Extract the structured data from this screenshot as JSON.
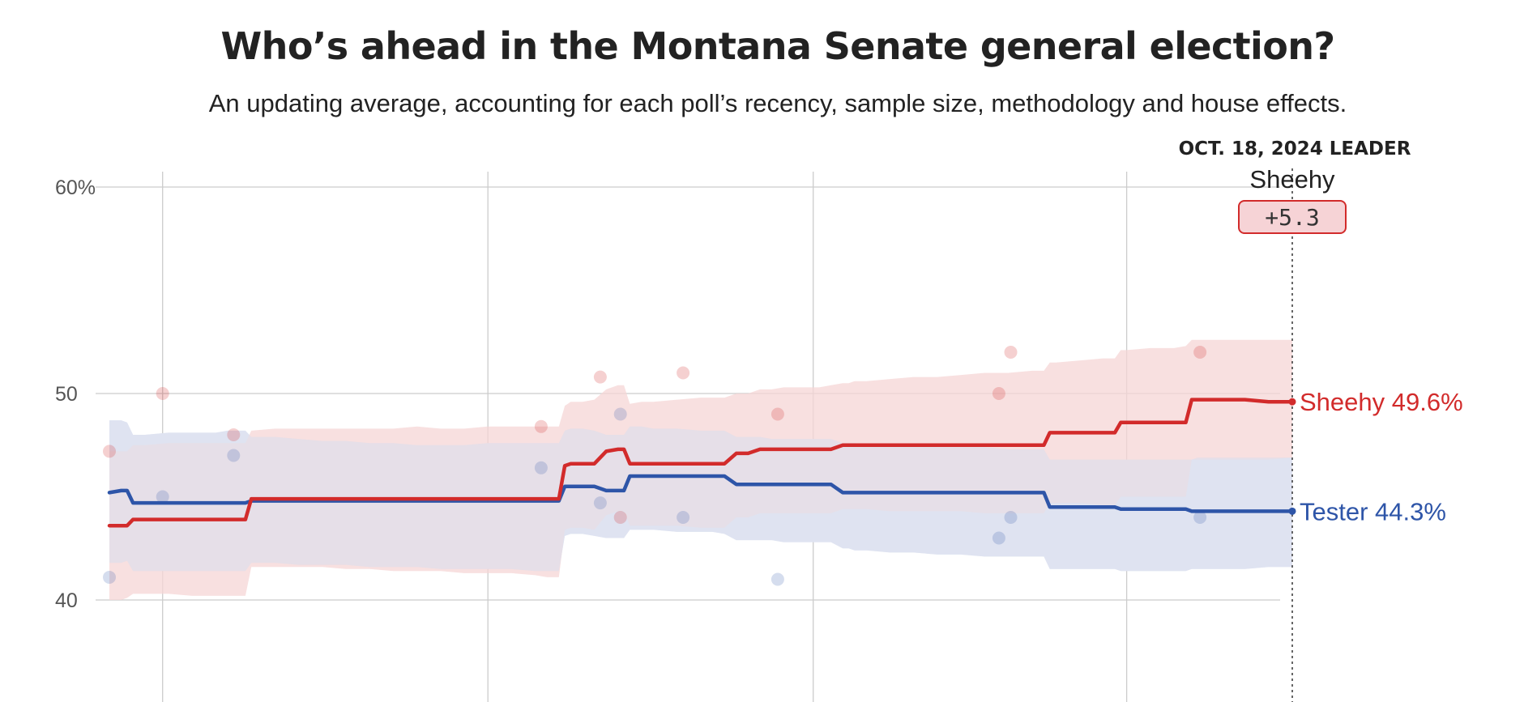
{
  "title": "Who’s ahead in the Montana Senate general election?",
  "subtitle": "An updating average, accounting for each poll’s recency, sample size, methodology and house effects.",
  "leader": {
    "date_label": "OCT. 18, 2024 LEADER",
    "name": "Sheehy",
    "margin": "+5.3"
  },
  "colors": {
    "sheehy": "#d22b2b",
    "tester": "#2e55a8",
    "sheehy_band": "#f6d5d5",
    "tester_band": "#dfe3f1",
    "overlap_band": "#e0cbd6",
    "grid": "#cccccc",
    "margin_box_fill": "#f6d3d6",
    "margin_box_stroke": "#d22b2b"
  },
  "chart_data": {
    "type": "line",
    "title": "Who’s ahead in the Montana Senate general election?",
    "y_ticks": [
      {
        "value": 60,
        "label": "60%"
      },
      {
        "value": 50,
        "label": "50"
      },
      {
        "value": 40,
        "label": "40"
      }
    ],
    "ylim": [
      35,
      63
    ],
    "xlim": [
      0,
      100
    ],
    "x_gridlines": [
      4.5,
      32,
      59.5,
      86
    ],
    "grid": true,
    "series": [
      {
        "name": "Sheehy",
        "color_key": "sheehy",
        "end_label": "Sheehy 49.6%",
        "x": [
          0,
          1,
          1.5,
          2,
          3,
          5,
          7,
          9,
          10,
          11,
          11.5,
          12,
          14,
          16,
          18,
          20,
          22,
          24,
          26,
          28,
          30,
          32,
          34,
          36,
          37,
          38,
          38.5,
          39,
          40,
          41,
          42,
          43,
          43.5,
          44,
          45,
          46,
          48,
          50,
          51,
          52,
          53,
          54,
          55,
          56,
          57,
          58,
          60,
          61,
          62,
          62.5,
          63,
          64,
          66,
          68,
          70,
          72,
          74,
          76,
          78,
          79,
          79.5,
          80,
          82,
          84,
          85,
          85.5,
          86,
          88,
          90,
          91,
          91.5,
          92,
          94,
          96,
          98,
          100
        ],
        "values": [
          43.6,
          43.6,
          43.6,
          43.9,
          43.9,
          43.9,
          43.9,
          43.9,
          43.9,
          43.9,
          43.9,
          44.9,
          44.9,
          44.9,
          44.9,
          44.9,
          44.9,
          44.9,
          44.9,
          44.9,
          44.9,
          44.9,
          44.9,
          44.9,
          44.9,
          44.9,
          46.5,
          46.6,
          46.6,
          46.6,
          47.2,
          47.3,
          47.3,
          46.6,
          46.6,
          46.6,
          46.6,
          46.6,
          46.6,
          46.6,
          47.1,
          47.1,
          47.3,
          47.3,
          47.3,
          47.3,
          47.3,
          47.3,
          47.5,
          47.5,
          47.5,
          47.5,
          47.5,
          47.5,
          47.5,
          47.5,
          47.5,
          47.5,
          47.5,
          47.5,
          48.1,
          48.1,
          48.1,
          48.1,
          48.1,
          48.6,
          48.6,
          48.6,
          48.6,
          48.6,
          49.7,
          49.7,
          49.7,
          49.7,
          49.6,
          49.6
        ],
        "upper": [
          47.2,
          47.2,
          47.2,
          47.5,
          47.5,
          47.6,
          47.6,
          47.6,
          47.6,
          47.6,
          47.6,
          48.2,
          48.3,
          48.3,
          48.3,
          48.3,
          48.3,
          48.3,
          48.4,
          48.3,
          48.3,
          48.4,
          48.4,
          48.4,
          48.4,
          48.4,
          49.4,
          49.6,
          49.6,
          49.7,
          50.2,
          50.4,
          50.4,
          49.5,
          49.6,
          49.6,
          49.7,
          49.8,
          49.8,
          49.8,
          50.0,
          50.0,
          50.2,
          50.2,
          50.3,
          50.3,
          50.3,
          50.4,
          50.5,
          50.5,
          50.6,
          50.6,
          50.7,
          50.8,
          50.8,
          50.9,
          51.0,
          51.0,
          51.1,
          51.1,
          51.5,
          51.5,
          51.6,
          51.7,
          51.7,
          52.1,
          52.1,
          52.2,
          52.2,
          52.3,
          52.6,
          52.6,
          52.6,
          52.6,
          52.6,
          52.6
        ],
        "lower": [
          40.0,
          40.0,
          40.1,
          40.3,
          40.3,
          40.3,
          40.2,
          40.2,
          40.2,
          40.2,
          40.2,
          41.6,
          41.6,
          41.6,
          41.6,
          41.5,
          41.5,
          41.4,
          41.4,
          41.4,
          41.3,
          41.3,
          41.3,
          41.2,
          41.1,
          41.1,
          43.4,
          43.5,
          43.5,
          43.4,
          44.1,
          44.3,
          44.3,
          43.6,
          43.6,
          43.6,
          43.6,
          43.5,
          43.5,
          43.5,
          44.0,
          44.0,
          44.2,
          44.2,
          44.2,
          44.2,
          44.2,
          44.2,
          44.4,
          44.4,
          44.4,
          44.4,
          44.3,
          44.3,
          44.3,
          44.3,
          44.2,
          44.2,
          44.2,
          44.2,
          44.7,
          44.7,
          44.7,
          44.6,
          44.6,
          45.0,
          45.0,
          45.0,
          45.0,
          45.0,
          46.8,
          46.8,
          46.8,
          46.8,
          46.8,
          46.9
        ]
      },
      {
        "name": "Tester",
        "color_key": "tester",
        "end_label": "Tester 44.3%",
        "x": [
          0,
          1,
          1.5,
          2,
          3,
          5,
          7,
          9,
          10,
          11,
          11.5,
          12,
          14,
          16,
          18,
          20,
          22,
          24,
          26,
          28,
          30,
          32,
          34,
          36,
          37,
          38,
          38.5,
          39,
          40,
          41,
          42,
          43,
          43.5,
          44,
          45,
          46,
          48,
          50,
          51,
          52,
          53,
          54,
          55,
          56,
          57,
          58,
          60,
          61,
          62,
          62.5,
          63,
          64,
          66,
          68,
          70,
          72,
          74,
          76,
          78,
          79,
          79.5,
          80,
          82,
          84,
          85,
          85.5,
          86,
          88,
          90,
          91,
          91.5,
          92,
          94,
          96,
          98,
          100
        ],
        "values": [
          45.2,
          45.3,
          45.3,
          44.7,
          44.7,
          44.7,
          44.7,
          44.7,
          44.7,
          44.7,
          44.7,
          44.8,
          44.8,
          44.8,
          44.8,
          44.8,
          44.8,
          44.8,
          44.8,
          44.8,
          44.8,
          44.8,
          44.8,
          44.8,
          44.8,
          44.8,
          45.5,
          45.5,
          45.5,
          45.5,
          45.3,
          45.3,
          45.3,
          46.0,
          46.0,
          46.0,
          46.0,
          46.0,
          46.0,
          46.0,
          45.6,
          45.6,
          45.6,
          45.6,
          45.6,
          45.6,
          45.6,
          45.6,
          45.2,
          45.2,
          45.2,
          45.2,
          45.2,
          45.2,
          45.2,
          45.2,
          45.2,
          45.2,
          45.2,
          45.2,
          44.5,
          44.5,
          44.5,
          44.5,
          44.5,
          44.4,
          44.4,
          44.4,
          44.4,
          44.4,
          44.3,
          44.3,
          44.3,
          44.3,
          44.3,
          44.3
        ],
        "upper": [
          48.7,
          48.7,
          48.6,
          48.0,
          48.0,
          48.1,
          48.1,
          48.1,
          48.2,
          48.2,
          48.2,
          47.9,
          47.9,
          47.8,
          47.7,
          47.7,
          47.6,
          47.6,
          47.5,
          47.5,
          47.5,
          47.6,
          47.6,
          47.6,
          47.6,
          47.6,
          48.2,
          48.3,
          48.3,
          48.2,
          48.0,
          48.0,
          48.0,
          48.4,
          48.4,
          48.3,
          48.3,
          48.2,
          48.2,
          48.2,
          47.9,
          47.9,
          47.9,
          47.8,
          47.8,
          47.8,
          47.8,
          47.8,
          47.6,
          47.6,
          47.6,
          47.5,
          47.5,
          47.5,
          47.4,
          47.4,
          47.4,
          47.3,
          47.3,
          47.3,
          46.8,
          46.8,
          46.8,
          46.8,
          46.8,
          46.8,
          46.8,
          46.8,
          46.8,
          46.8,
          46.8,
          46.9,
          46.9,
          46.9,
          46.9,
          46.9
        ],
        "lower": [
          41.8,
          41.8,
          41.9,
          41.4,
          41.4,
          41.4,
          41.4,
          41.4,
          41.4,
          41.4,
          41.4,
          41.8,
          41.8,
          41.7,
          41.7,
          41.7,
          41.6,
          41.6,
          41.6,
          41.5,
          41.5,
          41.5,
          41.5,
          41.4,
          41.4,
          41.4,
          43.1,
          43.2,
          43.2,
          43.1,
          43.0,
          43.0,
          43.0,
          43.4,
          43.4,
          43.4,
          43.3,
          43.3,
          43.3,
          43.2,
          42.9,
          42.9,
          42.9,
          42.9,
          42.8,
          42.8,
          42.8,
          42.8,
          42.5,
          42.5,
          42.4,
          42.4,
          42.3,
          42.3,
          42.2,
          42.2,
          42.1,
          42.1,
          42.1,
          42.1,
          41.5,
          41.5,
          41.5,
          41.5,
          41.5,
          41.4,
          41.4,
          41.4,
          41.4,
          41.4,
          41.5,
          41.5,
          41.5,
          41.5,
          41.6,
          41.6
        ]
      }
    ],
    "polls": [
      {
        "candidate": "Sheehy",
        "x": 0,
        "y": 47.2
      },
      {
        "candidate": "Tester",
        "x": 0,
        "y": 41.1
      },
      {
        "candidate": "Sheehy",
        "x": 4.5,
        "y": 50.0
      },
      {
        "candidate": "Tester",
        "x": 4.5,
        "y": 45.0
      },
      {
        "candidate": "Sheehy",
        "x": 10.5,
        "y": 48.0
      },
      {
        "candidate": "Tester",
        "x": 10.5,
        "y": 47.0
      },
      {
        "candidate": "Sheehy",
        "x": 36.5,
        "y": 48.4
      },
      {
        "candidate": "Tester",
        "x": 36.5,
        "y": 46.4
      },
      {
        "candidate": "Sheehy",
        "x": 41.5,
        "y": 50.8
      },
      {
        "candidate": "Tester",
        "x": 41.5,
        "y": 44.7
      },
      {
        "candidate": "Sheehy",
        "x": 43.2,
        "y": 44.0
      },
      {
        "candidate": "Tester",
        "x": 43.2,
        "y": 49.0
      },
      {
        "candidate": "Sheehy",
        "x": 48.5,
        "y": 51.0
      },
      {
        "candidate": "Tester",
        "x": 48.5,
        "y": 44.0
      },
      {
        "candidate": "Sheehy",
        "x": 56.5,
        "y": 49.0
      },
      {
        "candidate": "Tester",
        "x": 56.5,
        "y": 41.0
      },
      {
        "candidate": "Sheehy",
        "x": 75.2,
        "y": 50.0
      },
      {
        "candidate": "Tester",
        "x": 75.2,
        "y": 43.0
      },
      {
        "candidate": "Sheehy",
        "x": 76.2,
        "y": 52.0
      },
      {
        "candidate": "Tester",
        "x": 76.2,
        "y": 44.0
      },
      {
        "candidate": "Sheehy",
        "x": 92.2,
        "y": 52.0
      },
      {
        "candidate": "Tester",
        "x": 92.2,
        "y": 44.0
      }
    ]
  }
}
